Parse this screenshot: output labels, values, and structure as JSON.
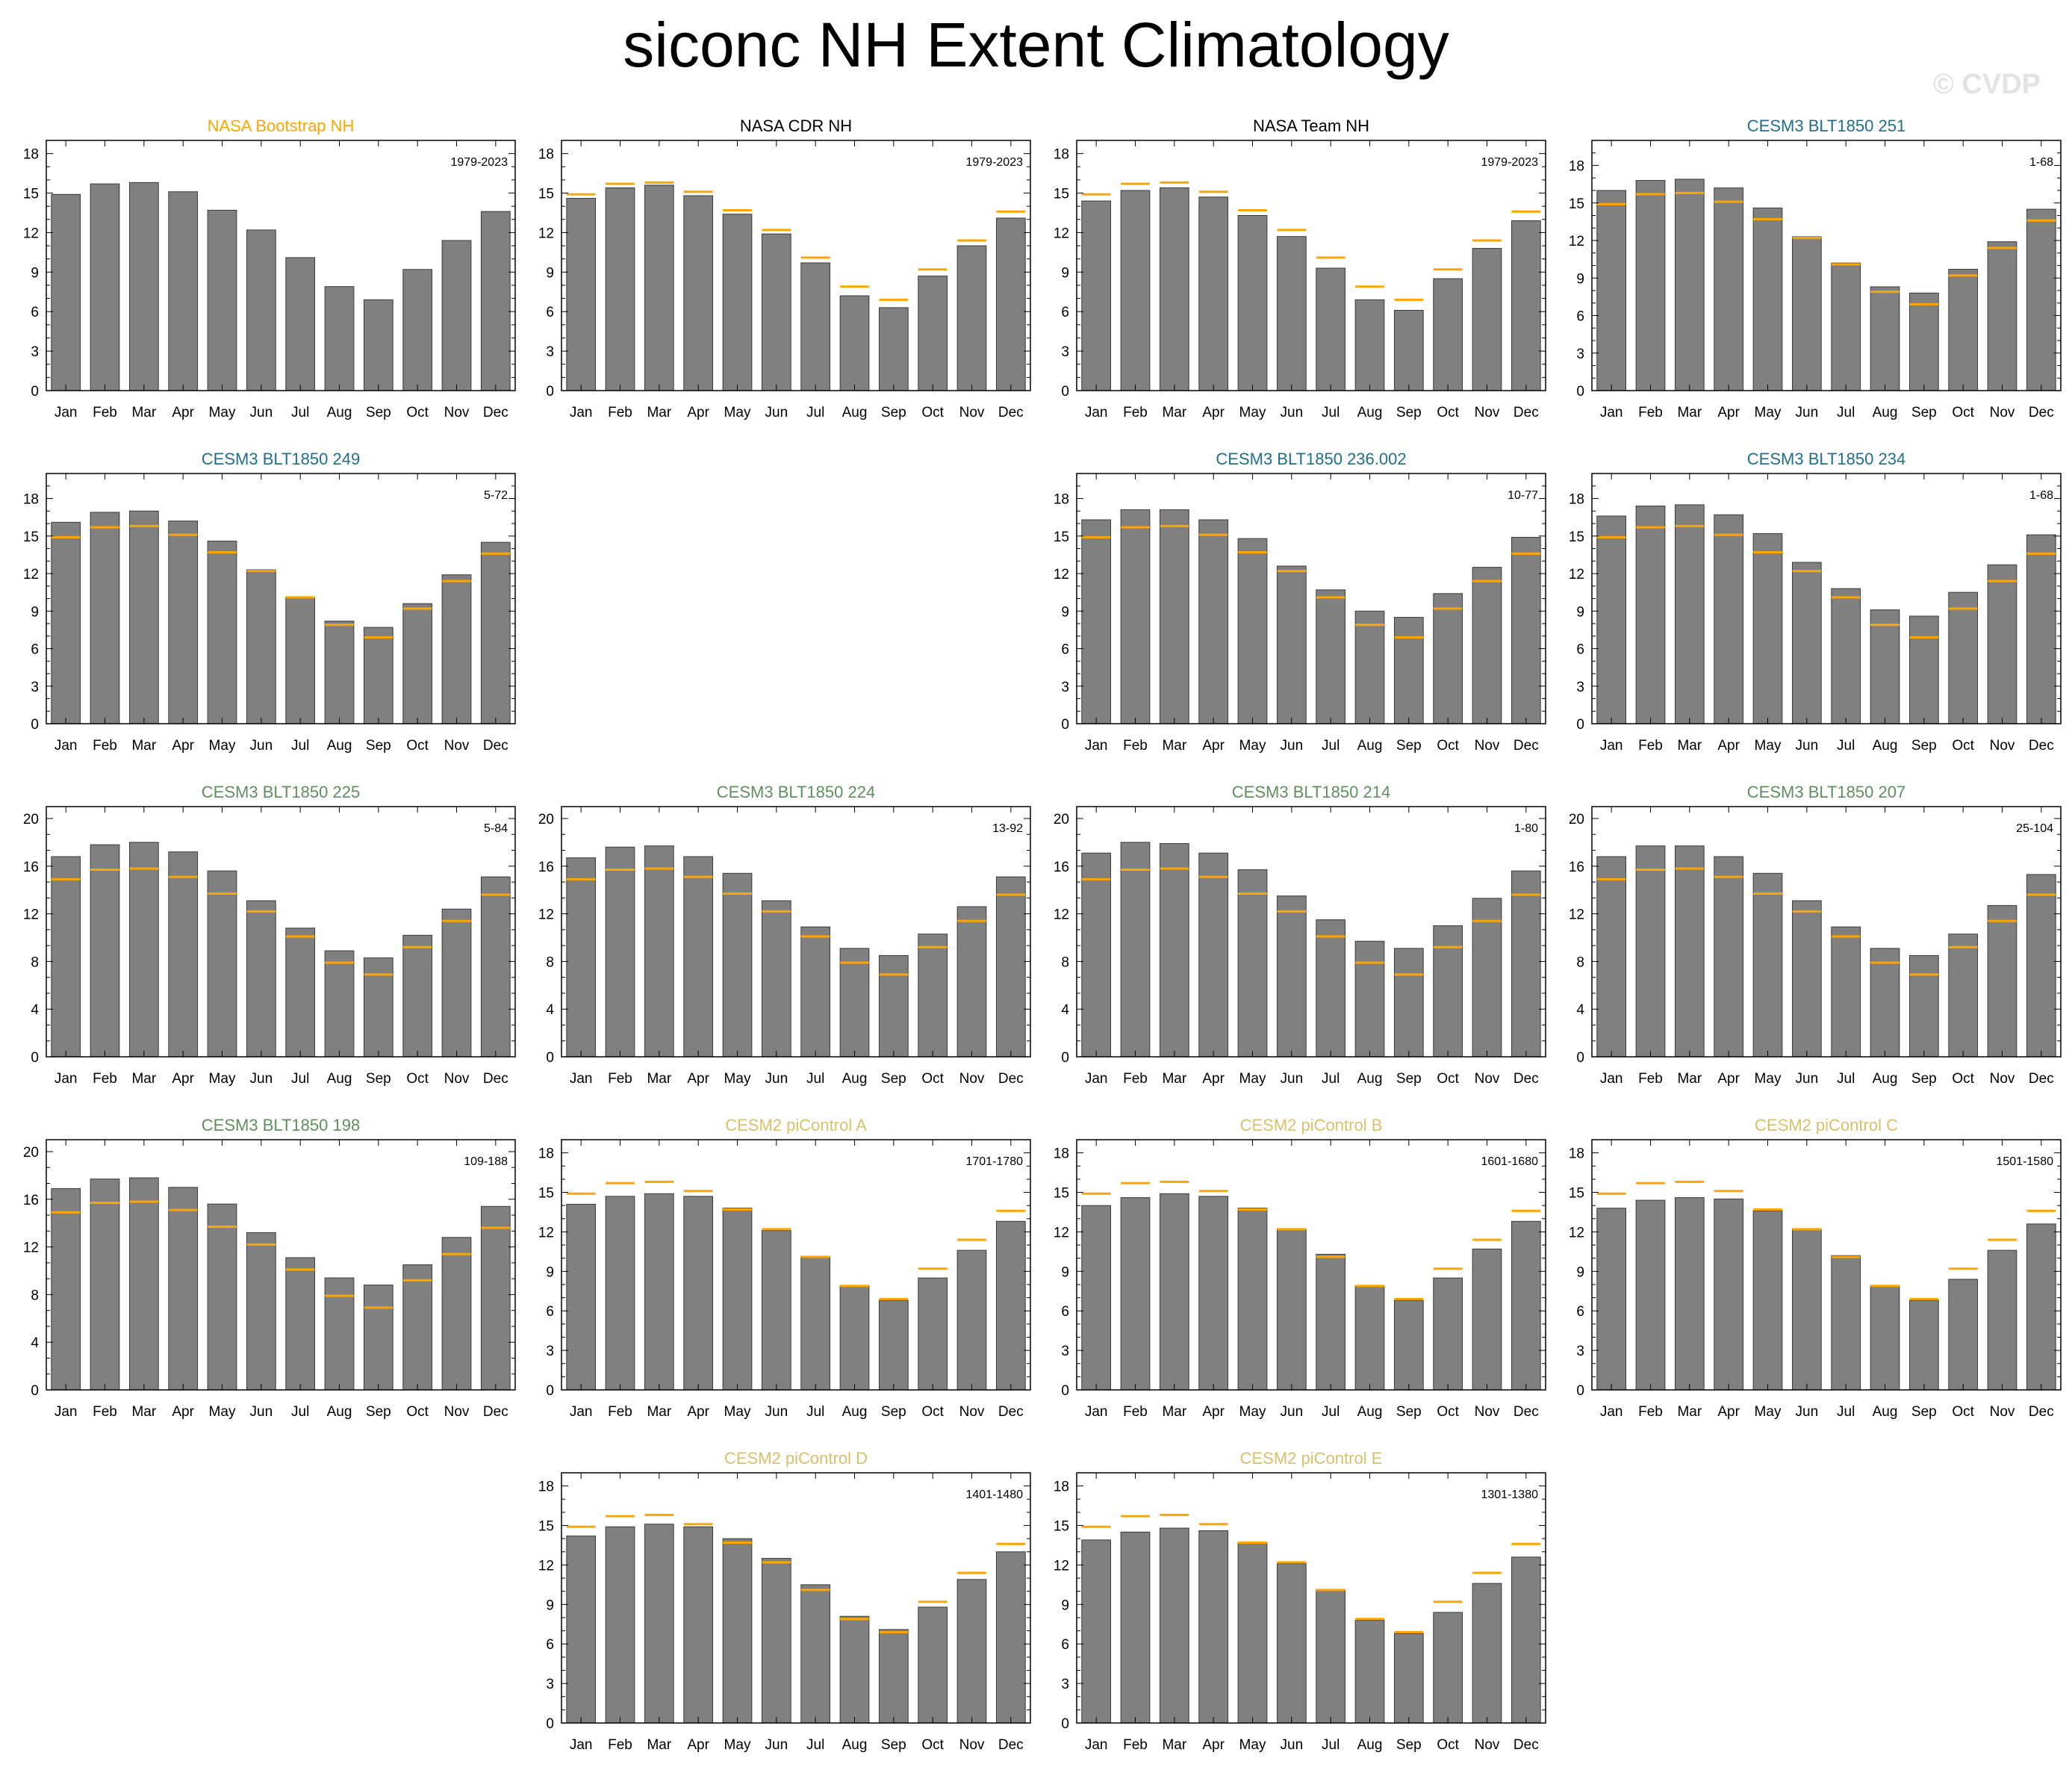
{
  "page": {
    "title": "siconc NH Extent Climatology",
    "watermark": "© CVDP"
  },
  "colors": {
    "bar": "#808080",
    "reference_line": "#ffa500",
    "obs_title": "#ffa500",
    "obs2_title": "#000000",
    "cesm3_blue": "#1f6f8b",
    "cesm3_green": "#5f8f5f",
    "cesm2_title": "#d8c06a"
  },
  "months": [
    "Jan",
    "Feb",
    "Mar",
    "Apr",
    "May",
    "Jun",
    "Jul",
    "Aug",
    "Sep",
    "Oct",
    "Nov",
    "Dec"
  ],
  "chart_data": [
    {
      "type": "bar",
      "title": "NASA Bootstrap NH",
      "title_color": "#ffa500",
      "period": "1979-2023",
      "ylim": [
        0,
        19
      ],
      "yticks": [
        0,
        3,
        6,
        9,
        12,
        15,
        18
      ],
      "values": [
        14.9,
        15.7,
        15.8,
        15.1,
        13.7,
        12.2,
        10.1,
        7.9,
        6.9,
        9.2,
        11.4,
        13.6
      ],
      "reference": []
    },
    {
      "type": "bar",
      "title": "NASA CDR NH",
      "title_color": "#000000",
      "period": "1979-2023",
      "ylim": [
        0,
        19
      ],
      "yticks": [
        0,
        3,
        6,
        9,
        12,
        15,
        18
      ],
      "values": [
        14.6,
        15.4,
        15.6,
        14.8,
        13.4,
        11.9,
        9.7,
        7.2,
        6.3,
        8.7,
        11.0,
        13.1
      ],
      "reference": [
        14.9,
        15.7,
        15.8,
        15.1,
        13.7,
        12.2,
        10.1,
        7.9,
        6.9,
        9.2,
        11.4,
        13.6
      ]
    },
    {
      "type": "bar",
      "title": "NASA Team NH",
      "title_color": "#000000",
      "period": "1979-2023",
      "ylim": [
        0,
        19
      ],
      "yticks": [
        0,
        3,
        6,
        9,
        12,
        15,
        18
      ],
      "values": [
        14.4,
        15.2,
        15.4,
        14.7,
        13.3,
        11.7,
        9.3,
        6.9,
        6.1,
        8.5,
        10.8,
        12.9
      ],
      "reference": [
        14.9,
        15.7,
        15.8,
        15.1,
        13.7,
        12.2,
        10.1,
        7.9,
        6.9,
        9.2,
        11.4,
        13.6
      ]
    },
    {
      "type": "bar",
      "title": "CESM3 BLT1850 251",
      "title_color": "#1f6f8b",
      "period": "1-68",
      "ylim": [
        0,
        20
      ],
      "yticks": [
        0,
        3,
        6,
        9,
        12,
        15,
        18
      ],
      "values": [
        16.0,
        16.8,
        16.9,
        16.2,
        14.6,
        12.3,
        10.2,
        8.3,
        7.8,
        9.7,
        11.9,
        14.5
      ],
      "reference": [
        14.9,
        15.7,
        15.8,
        15.1,
        13.7,
        12.2,
        10.1,
        7.9,
        6.9,
        9.2,
        11.4,
        13.6
      ]
    },
    {
      "type": "bar",
      "title": "CESM3 BLT1850 249",
      "title_color": "#1f6f8b",
      "period": "5-72",
      "ylim": [
        0,
        20
      ],
      "yticks": [
        0,
        3,
        6,
        9,
        12,
        15,
        18
      ],
      "values": [
        16.1,
        16.9,
        17.0,
        16.2,
        14.6,
        12.3,
        10.1,
        8.2,
        7.7,
        9.6,
        11.9,
        14.5
      ],
      "reference": [
        14.9,
        15.7,
        15.8,
        15.1,
        13.7,
        12.2,
        10.1,
        7.9,
        6.9,
        9.2,
        11.4,
        13.6
      ]
    },
    null,
    {
      "type": "bar",
      "title": "CESM3 BLT1850 236.002",
      "title_color": "#1f6f8b",
      "period": "10-77",
      "ylim": [
        0,
        20
      ],
      "yticks": [
        0,
        3,
        6,
        9,
        12,
        15,
        18
      ],
      "values": [
        16.3,
        17.1,
        17.1,
        16.3,
        14.8,
        12.6,
        10.7,
        9.0,
        8.5,
        10.4,
        12.5,
        14.9
      ],
      "reference": [
        14.9,
        15.7,
        15.8,
        15.1,
        13.7,
        12.2,
        10.1,
        7.9,
        6.9,
        9.2,
        11.4,
        13.6
      ]
    },
    {
      "type": "bar",
      "title": "CESM3 BLT1850 234",
      "title_color": "#1f6f8b",
      "period": "1-68",
      "ylim": [
        0,
        20
      ],
      "yticks": [
        0,
        3,
        6,
        9,
        12,
        15,
        18
      ],
      "values": [
        16.6,
        17.4,
        17.5,
        16.7,
        15.2,
        12.9,
        10.8,
        9.1,
        8.6,
        10.5,
        12.7,
        15.1
      ],
      "reference": [
        14.9,
        15.7,
        15.8,
        15.1,
        13.7,
        12.2,
        10.1,
        7.9,
        6.9,
        9.2,
        11.4,
        13.6
      ]
    },
    {
      "type": "bar",
      "title": "CESM3 BLT1850 225",
      "title_color": "#5f8f5f",
      "period": "5-84",
      "ylim": [
        0,
        21
      ],
      "yticks": [
        0,
        4,
        8,
        12,
        16,
        20
      ],
      "values": [
        16.8,
        17.8,
        18.0,
        17.2,
        15.6,
        13.1,
        10.8,
        8.9,
        8.3,
        10.2,
        12.4,
        15.1
      ],
      "reference": [
        14.9,
        15.7,
        15.8,
        15.1,
        13.7,
        12.2,
        10.1,
        7.9,
        6.9,
        9.2,
        11.4,
        13.6
      ]
    },
    {
      "type": "bar",
      "title": "CESM3 BLT1850 224",
      "title_color": "#5f8f5f",
      "period": "13-92",
      "ylim": [
        0,
        21
      ],
      "yticks": [
        0,
        4,
        8,
        12,
        16,
        20
      ],
      "values": [
        16.7,
        17.6,
        17.7,
        16.8,
        15.4,
        13.1,
        10.9,
        9.1,
        8.5,
        10.3,
        12.6,
        15.1
      ],
      "reference": [
        14.9,
        15.7,
        15.8,
        15.1,
        13.7,
        12.2,
        10.1,
        7.9,
        6.9,
        9.2,
        11.4,
        13.6
      ]
    },
    {
      "type": "bar",
      "title": "CESM3 BLT1850 214",
      "title_color": "#5f8f5f",
      "period": "1-80",
      "ylim": [
        0,
        21
      ],
      "yticks": [
        0,
        4,
        8,
        12,
        16,
        20
      ],
      "values": [
        17.1,
        18.0,
        17.9,
        17.1,
        15.7,
        13.5,
        11.5,
        9.7,
        9.1,
        11.0,
        13.3,
        15.6
      ],
      "reference": [
        14.9,
        15.7,
        15.8,
        15.1,
        13.7,
        12.2,
        10.1,
        7.9,
        6.9,
        9.2,
        11.4,
        13.6
      ]
    },
    {
      "type": "bar",
      "title": "CESM3 BLT1850 207",
      "title_color": "#5f8f5f",
      "period": "25-104",
      "ylim": [
        0,
        21
      ],
      "yticks": [
        0,
        4,
        8,
        12,
        16,
        20
      ],
      "values": [
        16.8,
        17.7,
        17.7,
        16.8,
        15.4,
        13.1,
        10.9,
        9.1,
        8.5,
        10.3,
        12.7,
        15.3
      ],
      "reference": [
        14.9,
        15.7,
        15.8,
        15.1,
        13.7,
        12.2,
        10.1,
        7.9,
        6.9,
        9.2,
        11.4,
        13.6
      ]
    },
    {
      "type": "bar",
      "title": "CESM3 BLT1850 198",
      "title_color": "#5f8f5f",
      "period": "109-188",
      "ylim": [
        0,
        21
      ],
      "yticks": [
        0,
        4,
        8,
        12,
        16,
        20
      ],
      "values": [
        16.9,
        17.7,
        17.8,
        17.0,
        15.6,
        13.2,
        11.1,
        9.4,
        8.8,
        10.5,
        12.8,
        15.4
      ],
      "reference": [
        14.9,
        15.7,
        15.8,
        15.1,
        13.7,
        12.2,
        10.1,
        7.9,
        6.9,
        9.2,
        11.4,
        13.6
      ]
    },
    {
      "type": "bar",
      "title": "CESM2 piControl A",
      "title_color": "#d8c06a",
      "period": "1701-1780",
      "ylim": [
        0,
        19
      ],
      "yticks": [
        0,
        3,
        6,
        9,
        12,
        15,
        18
      ],
      "values": [
        14.1,
        14.7,
        14.9,
        14.7,
        13.8,
        12.1,
        10.1,
        7.9,
        6.8,
        8.5,
        10.6,
        12.8
      ],
      "reference": [
        14.9,
        15.7,
        15.8,
        15.1,
        13.7,
        12.2,
        10.1,
        7.9,
        6.9,
        9.2,
        11.4,
        13.6
      ]
    },
    {
      "type": "bar",
      "title": "CESM2 piControl B",
      "title_color": "#d8c06a",
      "period": "1601-1680",
      "ylim": [
        0,
        19
      ],
      "yticks": [
        0,
        3,
        6,
        9,
        12,
        15,
        18
      ],
      "values": [
        14.0,
        14.6,
        14.9,
        14.7,
        13.8,
        12.2,
        10.3,
        7.9,
        6.8,
        8.5,
        10.7,
        12.8
      ],
      "reference": [
        14.9,
        15.7,
        15.8,
        15.1,
        13.7,
        12.2,
        10.1,
        7.9,
        6.9,
        9.2,
        11.4,
        13.6
      ]
    },
    {
      "type": "bar",
      "title": "CESM2 piControl C",
      "title_color": "#d8c06a",
      "period": "1501-1580",
      "ylim": [
        0,
        19
      ],
      "yticks": [
        0,
        3,
        6,
        9,
        12,
        15,
        18
      ],
      "values": [
        13.8,
        14.4,
        14.6,
        14.5,
        13.6,
        12.2,
        10.2,
        7.9,
        6.8,
        8.4,
        10.6,
        12.6
      ],
      "reference": [
        14.9,
        15.7,
        15.8,
        15.1,
        13.7,
        12.2,
        10.1,
        7.9,
        6.9,
        9.2,
        11.4,
        13.6
      ]
    },
    null,
    {
      "type": "bar",
      "title": "CESM2 piControl D",
      "title_color": "#d8c06a",
      "period": "1401-1480",
      "ylim": [
        0,
        19
      ],
      "yticks": [
        0,
        3,
        6,
        9,
        12,
        15,
        18
      ],
      "values": [
        14.2,
        14.9,
        15.1,
        14.9,
        14.0,
        12.5,
        10.5,
        8.1,
        7.1,
        8.8,
        10.9,
        13.0
      ],
      "reference": [
        14.9,
        15.7,
        15.8,
        15.1,
        13.7,
        12.2,
        10.1,
        7.9,
        6.9,
        9.2,
        11.4,
        13.6
      ]
    },
    {
      "type": "bar",
      "title": "CESM2 piControl E",
      "title_color": "#d8c06a",
      "period": "1301-1380",
      "ylim": [
        0,
        19
      ],
      "yticks": [
        0,
        3,
        6,
        9,
        12,
        15,
        18
      ],
      "values": [
        13.9,
        14.5,
        14.8,
        14.6,
        13.7,
        12.1,
        10.1,
        7.8,
        6.8,
        8.4,
        10.6,
        12.6
      ],
      "reference": [
        14.9,
        15.7,
        15.8,
        15.1,
        13.7,
        12.2,
        10.1,
        7.9,
        6.9,
        9.2,
        11.4,
        13.6
      ]
    }
  ]
}
